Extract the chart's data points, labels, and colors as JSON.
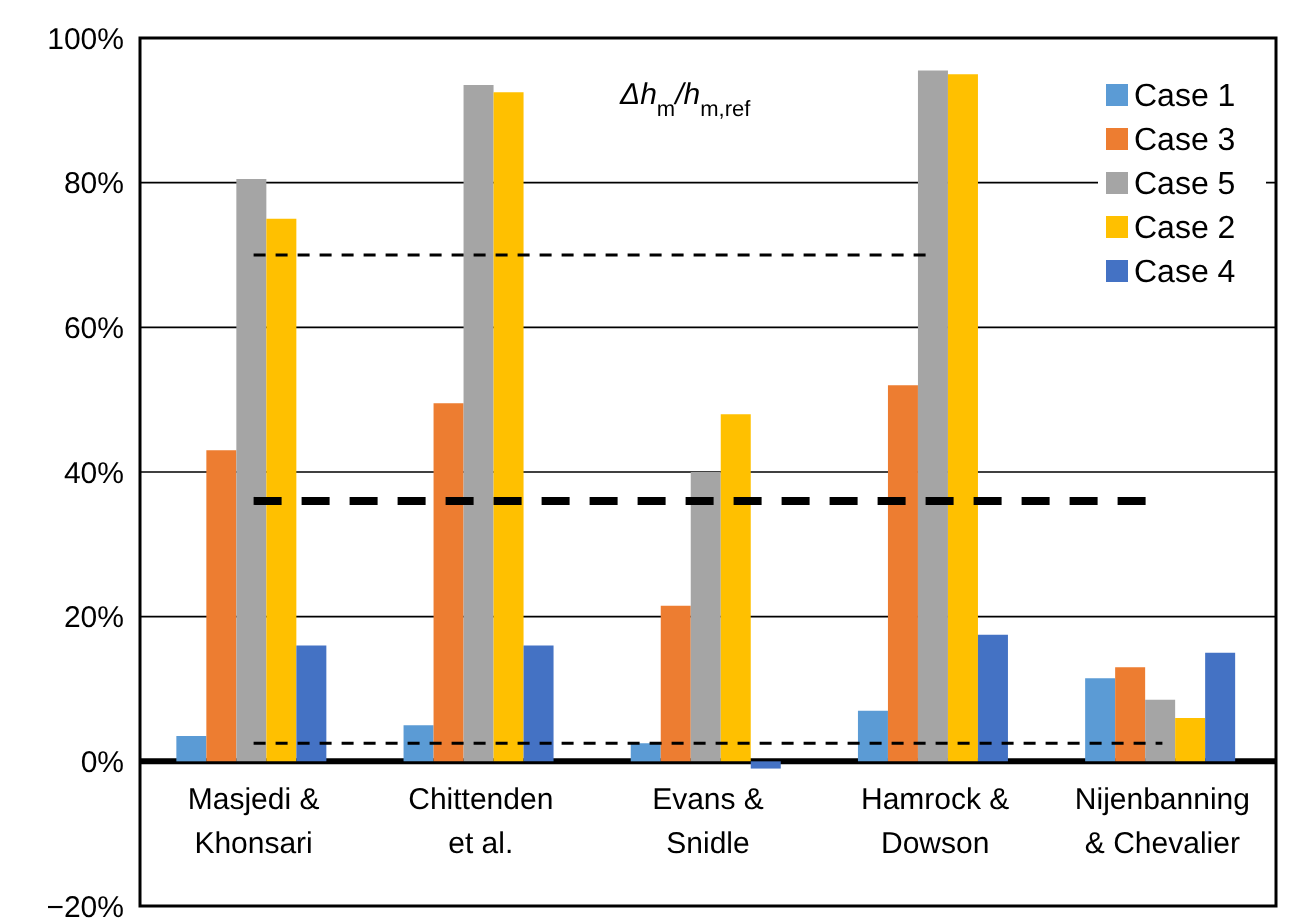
{
  "chart_data": {
    "type": "bar",
    "annotations": [
      "Δh$_{m}$/h$_{m,ref}$"
    ],
    "categories": [
      "Masjedi & Khonsari",
      "Chittenden et al.",
      "Evans & Snidle",
      "Hamrock & Dowson",
      "Nijenbanning & Chevalier"
    ],
    "series": [
      {
        "name": "Case 1",
        "color": "#5b9bd5",
        "values": [
          3.5,
          5,
          2.5,
          7,
          11.5
        ]
      },
      {
        "name": "Case 3",
        "color": "#ed7d31",
        "values": [
          43,
          49.5,
          21.5,
          52,
          13
        ]
      },
      {
        "name": "Case 5",
        "color": "#a5a5a5",
        "values": [
          80.5,
          93.5,
          40,
          95.5,
          8.5
        ]
      },
      {
        "name": "Case 2",
        "color": "#ffc000",
        "values": [
          75,
          92.5,
          48,
          95,
          6
        ]
      },
      {
        "name": "Case 4",
        "color": "#4472c4",
        "values": [
          16,
          16,
          -1,
          17.5,
          15
        ]
      }
    ],
    "ylim": [
      -20,
      100
    ],
    "yticks": [
      {
        "value": -20,
        "label": "−20%"
      },
      {
        "value": 0,
        "label": "0%"
      },
      {
        "value": 20,
        "label": "20%"
      },
      {
        "value": 40,
        "label": "40%"
      },
      {
        "value": 60,
        "label": "60%"
      },
      {
        "value": 80,
        "label": "80%"
      },
      {
        "value": 100,
        "label": "100%"
      }
    ],
    "ref_lines": [
      {
        "axis": "y",
        "value": 70,
        "color": "#000000",
        "line_style": "dashed"
      },
      {
        "axis": "y",
        "value": 36,
        "color": "#000000",
        "line_style": "dashed"
      },
      {
        "axis": "y",
        "value": 2.5,
        "color": "#000000",
        "line_style": "dashed"
      }
    ],
    "grid": "y",
    "legend": "top right"
  }
}
